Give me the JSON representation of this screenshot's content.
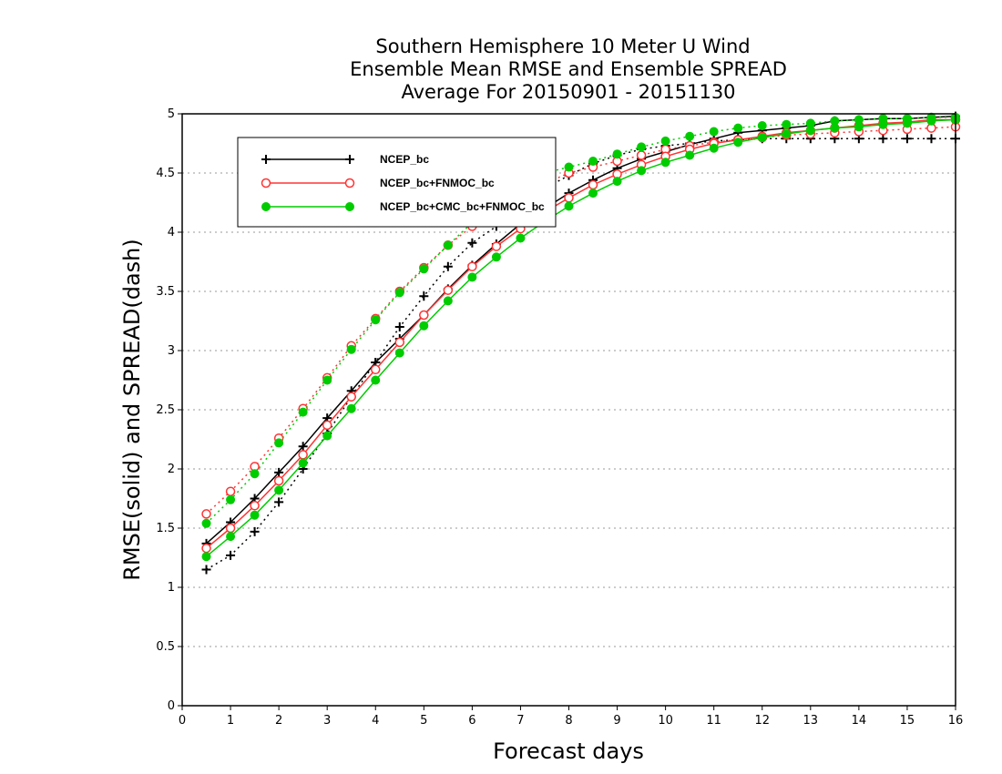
{
  "chart_data": {
    "type": "line",
    "title": [
      "Southern Hemisphere 10 Meter U Wind",
      "Ensemble Mean RMSE and Ensemble SPREAD",
      "Average For 20150901 - 20151130"
    ],
    "xlabel": "Forecast days",
    "ylabel": "RMSE(solid) and SPREAD(dash)",
    "xlim": [
      0,
      16
    ],
    "ylim": [
      0,
      5
    ],
    "xticks": [
      "0",
      "1",
      "2",
      "3",
      "4",
      "5",
      "6",
      "7",
      "8",
      "9",
      "10",
      "11",
      "12",
      "13",
      "14",
      "15",
      "16"
    ],
    "yticks": [
      "0",
      "0.5",
      "1",
      "1.5",
      "2",
      "2.5",
      "3",
      "3.5",
      "4",
      "4.5",
      "5"
    ],
    "grid": "horizontal dotted",
    "legend_position": "top-left",
    "x": [
      0.5,
      1,
      1.5,
      2,
      2.5,
      3,
      3.5,
      4,
      4.5,
      5,
      5.5,
      6,
      6.5,
      7,
      7.5,
      8,
      8.5,
      9,
      9.5,
      10,
      10.5,
      11,
      11.5,
      12,
      12.5,
      13,
      13.5,
      14,
      14.5,
      15,
      15.5,
      16
    ],
    "series": [
      {
        "name": "NCEP_bc",
        "color": "#000000",
        "marker": "plus",
        "rmse": [
          1.37,
          1.55,
          1.75,
          1.97,
          2.19,
          2.43,
          2.66,
          2.9,
          3.1,
          3.3,
          3.52,
          3.72,
          3.9,
          4.07,
          4.2,
          4.33,
          4.44,
          4.54,
          4.62,
          4.68,
          4.74,
          4.79,
          4.84,
          4.86,
          4.88,
          4.9,
          4.94,
          4.95,
          4.96,
          4.96,
          4.97,
          4.98
        ],
        "spread": [
          1.15,
          1.27,
          1.47,
          1.72,
          2.0,
          2.3,
          2.61,
          2.9,
          3.2,
          3.46,
          3.71,
          3.91,
          4.05,
          4.22,
          4.37,
          4.48,
          4.58,
          4.65,
          4.7,
          4.73,
          4.75,
          4.77,
          4.78,
          4.79,
          4.79,
          4.79,
          4.79,
          4.79,
          4.79,
          4.79,
          4.79,
          4.79
        ]
      },
      {
        "name": "NCEP_bc+FNMOC_bc",
        "color": "#ff3333",
        "marker": "open-circle",
        "rmse": [
          1.33,
          1.5,
          1.69,
          1.9,
          2.12,
          2.37,
          2.61,
          2.84,
          3.07,
          3.3,
          3.51,
          3.71,
          3.88,
          4.03,
          4.17,
          4.29,
          4.4,
          4.49,
          4.57,
          4.64,
          4.7,
          4.75,
          4.78,
          4.81,
          4.84,
          4.86,
          4.88,
          4.9,
          4.92,
          4.93,
          4.95,
          4.95
        ],
        "spread": [
          1.62,
          1.81,
          2.02,
          2.26,
          2.51,
          2.77,
          3.04,
          3.27,
          3.5,
          3.7,
          3.89,
          4.05,
          4.19,
          4.31,
          4.41,
          4.5,
          4.55,
          4.6,
          4.65,
          4.7,
          4.73,
          4.76,
          4.78,
          4.8,
          4.82,
          4.83,
          4.84,
          4.85,
          4.86,
          4.87,
          4.88,
          4.89
        ]
      },
      {
        "name": "NCEP_bc+CMC_bc+FNMOC_bc",
        "color": "#00cc00",
        "marker": "filled-circle",
        "rmse": [
          1.26,
          1.43,
          1.61,
          1.82,
          2.05,
          2.28,
          2.51,
          2.75,
          2.98,
          3.21,
          3.42,
          3.62,
          3.79,
          3.95,
          4.09,
          4.22,
          4.33,
          4.43,
          4.52,
          4.59,
          4.65,
          4.71,
          4.76,
          4.8,
          4.83,
          4.86,
          4.88,
          4.89,
          4.91,
          4.92,
          4.94,
          4.95
        ],
        "spread": [
          1.54,
          1.74,
          1.96,
          2.22,
          2.48,
          2.75,
          3.01,
          3.26,
          3.49,
          3.69,
          3.89,
          4.08,
          4.25,
          4.4,
          4.5,
          4.55,
          4.6,
          4.66,
          4.72,
          4.77,
          4.81,
          4.85,
          4.88,
          4.9,
          4.91,
          4.92,
          4.94,
          4.95,
          4.96,
          4.96,
          4.97,
          4.97
        ]
      }
    ]
  }
}
